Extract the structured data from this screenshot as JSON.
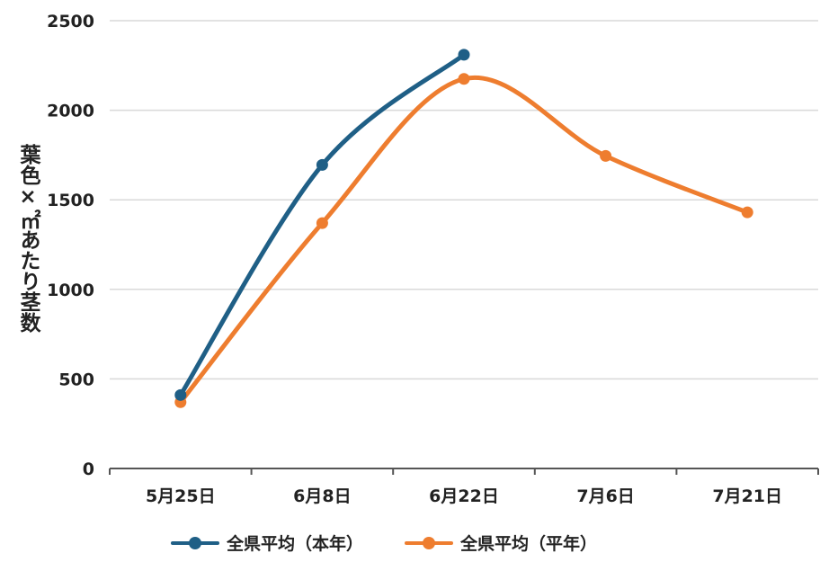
{
  "chart_data": {
    "type": "line",
    "ylabel": "葉色×㎡あたり茎数",
    "categories": [
      "5月25日",
      "6月8日",
      "6月22日",
      "7月6日",
      "7月21日"
    ],
    "ylim": [
      0,
      2500
    ],
    "yticks": [
      0,
      500,
      1000,
      1500,
      2000,
      2500
    ],
    "grid": true,
    "legend_position": "bottom",
    "series": [
      {
        "name": "全県平均（本年）",
        "color": "#1f5f86",
        "values": [
          410,
          1695,
          2310,
          null,
          null
        ]
      },
      {
        "name": "全県平均（平年）",
        "color": "#ee7d2f",
        "values": [
          370,
          1370,
          2175,
          1745,
          1430
        ]
      }
    ]
  }
}
